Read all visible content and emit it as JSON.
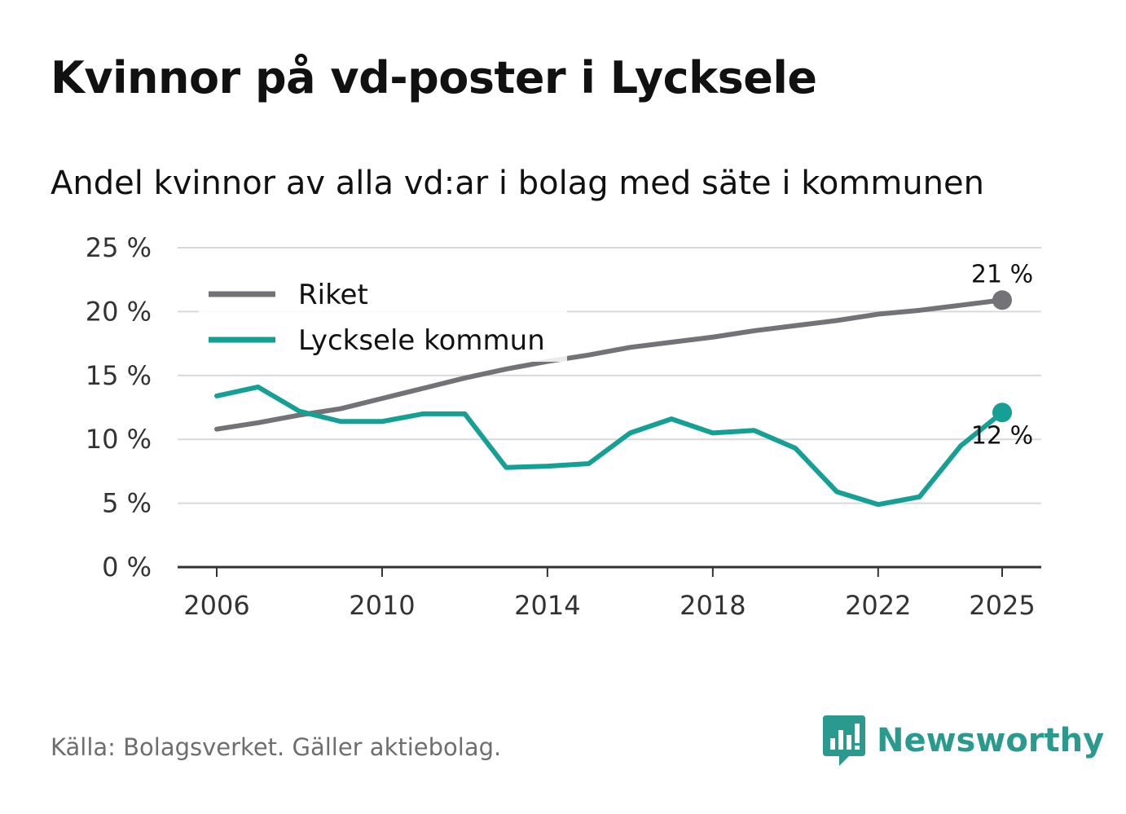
{
  "title": "Kvinnor på vd-poster i Lycksele",
  "subtitle": "Andel kvinnor av alla vd:ar i bolag med säte i kommunen",
  "source": "Källa: Bolagsverket. Gäller aktiebolag.",
  "brand": {
    "name": "Newsworthy",
    "color": "#2a9a8e",
    "icon": "newsworthy-logo-icon"
  },
  "chart_data": {
    "type": "line",
    "title": "Kvinnor på vd-poster i Lycksele",
    "subtitle": "Andel kvinnor av alla vd:ar i bolag med säte i kommunen",
    "xlabel": "",
    "ylabel": "",
    "x": [
      2006,
      2007,
      2008,
      2009,
      2010,
      2011,
      2012,
      2013,
      2014,
      2015,
      2016,
      2017,
      2018,
      2019,
      2020,
      2021,
      2022,
      2023,
      2024,
      2025
    ],
    "xticks": [
      2006,
      2010,
      2014,
      2018,
      2022,
      2025
    ],
    "xtick_labels": [
      "2006",
      "2010",
      "2014",
      "2018",
      "2022",
      "2025"
    ],
    "ylim": [
      0,
      25
    ],
    "yticks": [
      0,
      5,
      10,
      15,
      20,
      25
    ],
    "ytick_labels": [
      "0 %",
      "5 %",
      "10 %",
      "15 %",
      "20 %",
      "25 %"
    ],
    "grid": true,
    "legend_position": "top-left",
    "series": [
      {
        "name": "Riket",
        "color": "#737277",
        "values": [
          10.8,
          11.3,
          11.9,
          12.4,
          13.2,
          14.0,
          14.8,
          15.5,
          16.1,
          16.6,
          17.2,
          17.6,
          18.0,
          18.5,
          18.9,
          19.3,
          19.8,
          20.1,
          20.5,
          20.9
        ],
        "end_label": "21 %"
      },
      {
        "name": "Lycksele kommun",
        "color": "#16a095",
        "values": [
          13.4,
          14.1,
          12.2,
          11.4,
          11.4,
          12.0,
          12.0,
          7.8,
          7.9,
          8.1,
          10.5,
          11.6,
          10.5,
          10.7,
          9.3,
          5.9,
          4.9,
          5.5,
          9.5,
          12.1
        ],
        "end_label": "12 %"
      }
    ]
  }
}
